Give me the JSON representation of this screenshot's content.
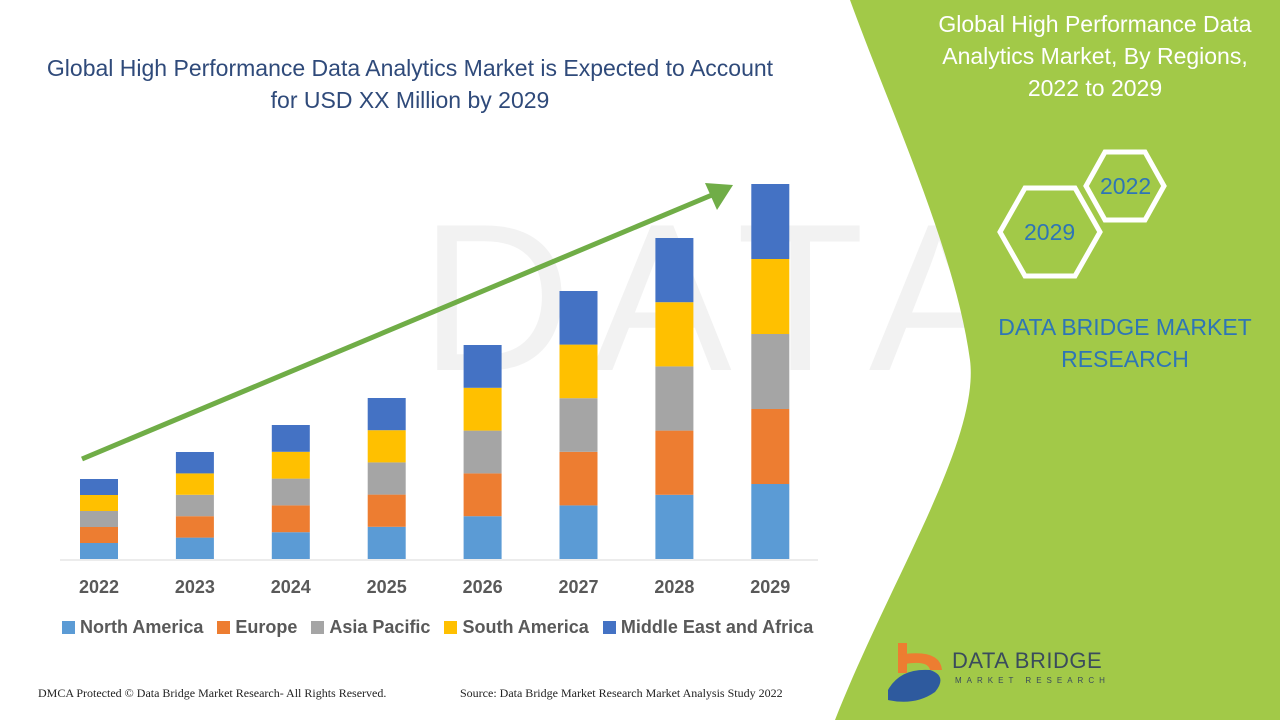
{
  "chart_data": {
    "type": "bar",
    "stacked": true,
    "title": "Global High Performance Data Analytics Market is Expected to Account for USD XX Million by 2029",
    "xlabel": "",
    "ylabel": "",
    "grid": false,
    "legend_position": "bottom",
    "categories": [
      "2022",
      "2023",
      "2024",
      "2025",
      "2026",
      "2027",
      "2028",
      "2029"
    ],
    "series": [
      {
        "name": "North America",
        "color": "#5b9bd5",
        "values": [
          16,
          21.4,
          26.8,
          32.2,
          42.8,
          53.6,
          64.2,
          75
        ]
      },
      {
        "name": "Europe",
        "color": "#ed7d31",
        "values": [
          16,
          21.4,
          26.8,
          32.2,
          42.8,
          53.6,
          64.2,
          75
        ]
      },
      {
        "name": "Asia Pacific",
        "color": "#a5a5a5",
        "values": [
          16,
          21.4,
          26.8,
          32.2,
          42.8,
          53.6,
          64.2,
          75
        ]
      },
      {
        "name": "South America",
        "color": "#ffc000",
        "values": [
          16,
          21.4,
          26.8,
          32.2,
          42.8,
          53.6,
          64.2,
          75
        ]
      },
      {
        "name": "Middle East and Africa",
        "color": "#4472c4",
        "values": [
          16,
          21.4,
          26.8,
          32.2,
          42.8,
          53.6,
          64.2,
          75
        ]
      }
    ],
    "trend_arrow_color": "#70ad47"
  },
  "panel": {
    "title": "Global High Performance Data Analytics Market, By Regions, 2022 to 2029",
    "hex_start": "2022",
    "hex_end": "2029",
    "brand": "DATA BRIDGE MARKET RESEARCH",
    "color": "#a2c948"
  },
  "logo": {
    "name": "DATA BRIDGE",
    "sub": "MARKET RESEARCH"
  },
  "footer": {
    "left": "DMCA Protected © Data Bridge Market Research- All Rights Reserved.",
    "right": "Source: Data Bridge Market Research Market Analysis Study 2022"
  }
}
